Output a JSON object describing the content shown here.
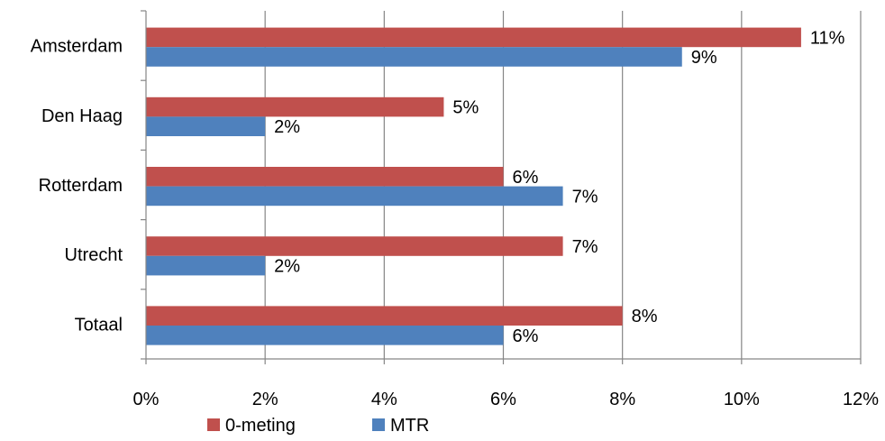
{
  "chart_data": {
    "type": "bar",
    "orientation": "horizontal",
    "title": "",
    "xlabel": "",
    "ylabel": "",
    "categories": [
      "Amsterdam",
      "Den Haag",
      "Rotterdam",
      "Utrecht",
      "Totaal"
    ],
    "series": [
      {
        "name": "0-meting",
        "color": "#c0504d",
        "values": [
          11,
          5,
          6,
          7,
          8
        ],
        "labels": [
          "11%",
          "5%",
          "6%",
          "7%",
          "8%"
        ]
      },
      {
        "name": "MTR",
        "color": "#4f81bd",
        "values": [
          9,
          2,
          7,
          2,
          6
        ],
        "labels": [
          "9%",
          "2%",
          "7%",
          "2%",
          "6%"
        ]
      }
    ],
    "xlim": [
      0,
      12
    ],
    "xticks": [
      0,
      2,
      4,
      6,
      8,
      10,
      12
    ],
    "xtick_labels": [
      "0%",
      "2%",
      "4%",
      "6%",
      "8%",
      "10%",
      "12%"
    ],
    "grid": "vertical major gridlines",
    "legend_position": "bottom"
  }
}
